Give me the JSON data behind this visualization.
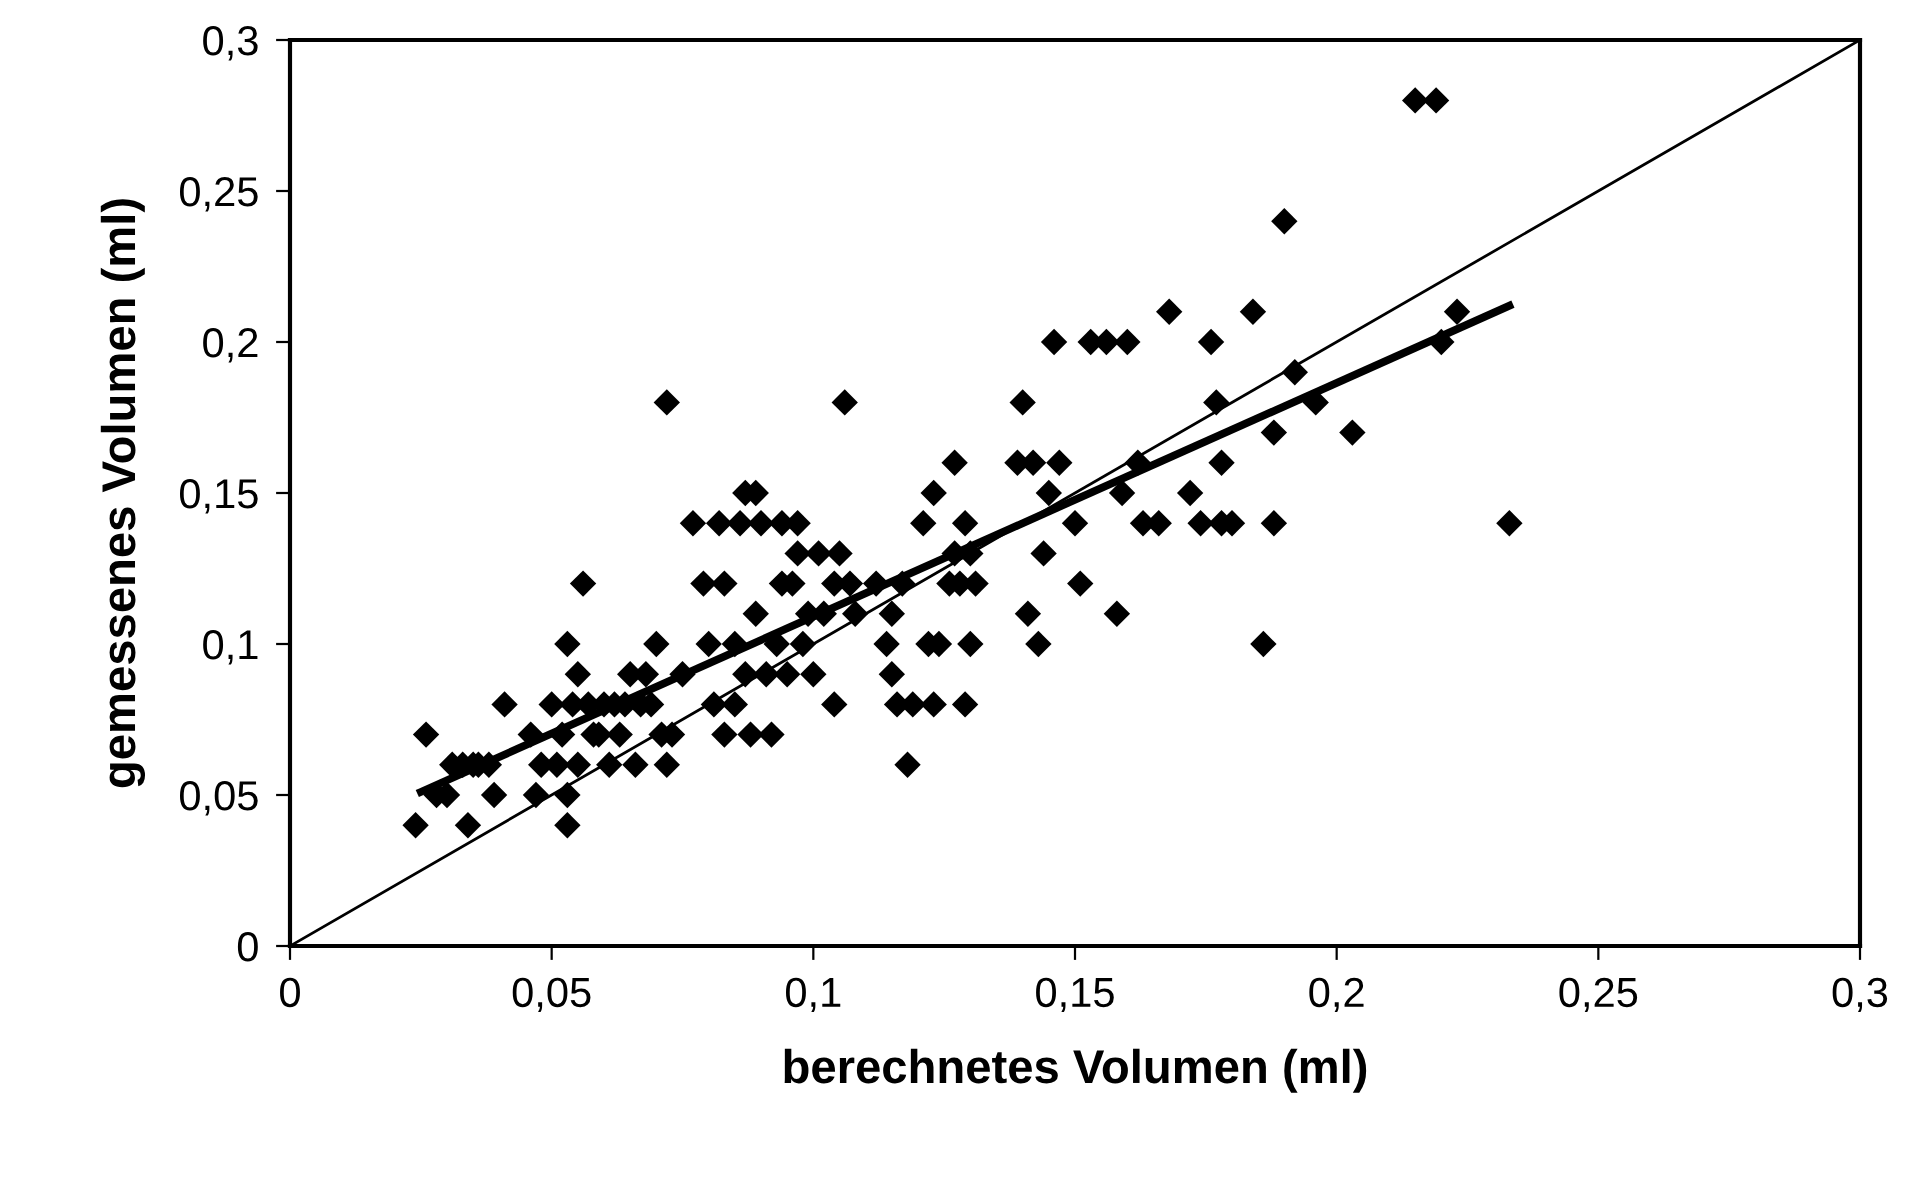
{
  "chart_data": {
    "type": "scatter",
    "xlabel": "berechnetes Volumen (ml)",
    "ylabel": "gemessenes Volumen (ml)",
    "xlim": [
      0,
      0.3
    ],
    "ylim": [
      0,
      0.3
    ],
    "xticks": [
      0,
      {
        "value": 0.05,
        "label": "0,05"
      },
      {
        "value": 0.1,
        "label": "0,1"
      },
      {
        "value": 0.15,
        "label": "0,15"
      },
      {
        "value": 0.2,
        "label": "0,2"
      },
      {
        "value": 0.25,
        "label": "0,25"
      },
      {
        "value": 0.3,
        "label": "0,3"
      }
    ],
    "yticks": [
      0,
      {
        "value": 0.05,
        "label": "0,05"
      },
      {
        "value": 0.1,
        "label": "0,1"
      },
      {
        "value": 0.15,
        "label": "0,15"
      },
      {
        "value": 0.2,
        "label": "0,2"
      },
      {
        "value": 0.25,
        "label": "0,25"
      },
      {
        "value": 0.3,
        "label": "0,3"
      }
    ],
    "grid": false,
    "legend": false,
    "marker": "diamond",
    "series": [
      {
        "color": "#000000",
        "x": [
          0.024,
          0.026,
          0.028,
          0.03,
          0.031,
          0.033,
          0.034,
          0.035,
          0.036,
          0.038,
          0.039,
          0.041,
          0.046,
          0.047,
          0.048,
          0.05,
          0.051,
          0.052,
          0.053,
          0.053,
          0.053,
          0.054,
          0.055,
          0.055,
          0.056,
          0.057,
          0.058,
          0.059,
          0.06,
          0.061,
          0.062,
          0.063,
          0.064,
          0.065,
          0.066,
          0.067,
          0.068,
          0.069,
          0.07,
          0.071,
          0.072,
          0.072,
          0.073,
          0.075,
          0.077,
          0.079,
          0.08,
          0.081,
          0.082,
          0.083,
          0.083,
          0.085,
          0.085,
          0.086,
          0.087,
          0.087,
          0.088,
          0.089,
          0.089,
          0.09,
          0.091,
          0.092,
          0.093,
          0.094,
          0.094,
          0.095,
          0.096,
          0.097,
          0.097,
          0.098,
          0.099,
          0.1,
          0.101,
          0.102,
          0.104,
          0.104,
          0.105,
          0.106,
          0.107,
          0.108,
          0.112,
          0.114,
          0.115,
          0.115,
          0.116,
          0.117,
          0.118,
          0.119,
          0.121,
          0.122,
          0.123,
          0.123,
          0.124,
          0.126,
          0.127,
          0.127,
          0.128,
          0.129,
          0.129,
          0.13,
          0.13,
          0.131,
          0.139,
          0.14,
          0.141,
          0.142,
          0.143,
          0.144,
          0.145,
          0.146,
          0.147,
          0.15,
          0.151,
          0.153,
          0.156,
          0.158,
          0.159,
          0.16,
          0.162,
          0.163,
          0.166,
          0.168,
          0.172,
          0.174,
          0.176,
          0.177,
          0.178,
          0.178,
          0.18,
          0.184,
          0.186,
          0.188,
          0.188,
          0.19,
          0.192,
          0.196,
          0.203,
          0.215,
          0.219,
          0.22,
          0.223,
          0.233
        ],
        "values": [
          0.04,
          0.07,
          0.05,
          0.05,
          0.06,
          0.06,
          0.04,
          0.06,
          0.06,
          0.06,
          0.05,
          0.08,
          0.07,
          0.05,
          0.06,
          0.08,
          0.06,
          0.07,
          0.04,
          0.05,
          0.1,
          0.08,
          0.09,
          0.06,
          0.12,
          0.08,
          0.07,
          0.07,
          0.08,
          0.06,
          0.08,
          0.07,
          0.08,
          0.09,
          0.06,
          0.08,
          0.09,
          0.08,
          0.1,
          0.07,
          0.06,
          0.18,
          0.07,
          0.09,
          0.14,
          0.12,
          0.1,
          0.08,
          0.14,
          0.12,
          0.07,
          0.08,
          0.1,
          0.14,
          0.15,
          0.09,
          0.07,
          0.15,
          0.11,
          0.14,
          0.09,
          0.07,
          0.1,
          0.14,
          0.12,
          0.09,
          0.12,
          0.13,
          0.14,
          0.1,
          0.11,
          0.09,
          0.13,
          0.11,
          0.08,
          0.12,
          0.13,
          0.18,
          0.12,
          0.11,
          0.12,
          0.1,
          0.09,
          0.11,
          0.08,
          0.12,
          0.06,
          0.08,
          0.14,
          0.1,
          0.15,
          0.08,
          0.1,
          0.12,
          0.16,
          0.13,
          0.12,
          0.14,
          0.08,
          0.13,
          0.1,
          0.12,
          0.16,
          0.18,
          0.11,
          0.16,
          0.1,
          0.13,
          0.15,
          0.2,
          0.16,
          0.14,
          0.12,
          0.2,
          0.2,
          0.11,
          0.15,
          0.2,
          0.16,
          0.14,
          0.14,
          0.21,
          0.15,
          0.14,
          0.2,
          0.18,
          0.16,
          0.14,
          0.14,
          0.21,
          0.1,
          0.14,
          0.17,
          0.24,
          0.19,
          0.18,
          0.17,
          0.28,
          0.28,
          0.2,
          0.21,
          0.14
        ]
      },
      {
        "type": "line",
        "color": "#000000",
        "marker": "none",
        "line_style": "solid",
        "x": [
          0,
          0.3
        ],
        "values": [
          0,
          0.3
        ]
      },
      {
        "type": "line",
        "color": "#000000",
        "marker": "none",
        "line_style": "solid",
        "x": [
          0.025,
          0.233
        ],
        "values": [
          0.051,
          0.212
        ]
      }
    ]
  }
}
